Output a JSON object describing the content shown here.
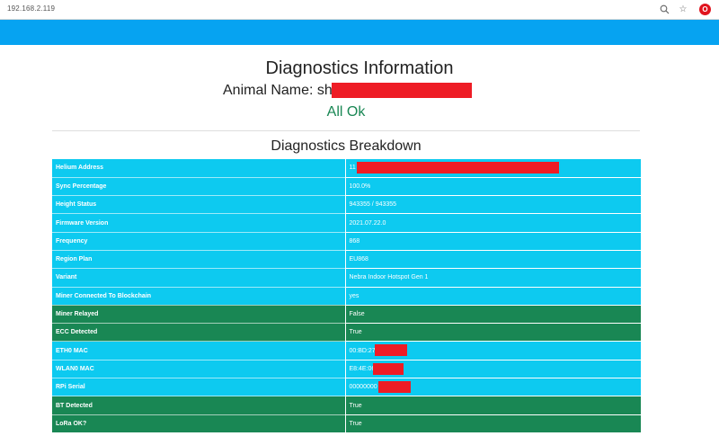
{
  "browser": {
    "url": "192.168.2.119",
    "zoom_icon": "magnifier-icon",
    "bookmark_icon": "star-icon",
    "opera_icon": "opera-logo-icon",
    "opera_glyph": "O"
  },
  "page": {
    "title": "Diagnostics Information",
    "animal_name": "Animal Name: sh",
    "status": "All Ok",
    "breakdown_title": "Diagnostics Breakdown"
  },
  "colors": {
    "header": "#06a3f1",
    "info_row": "#0dcaf0",
    "success_row": "#198754",
    "redaction": "#ee1c25"
  },
  "diagnostics": [
    {
      "key": "Helium Address",
      "value": "11",
      "style": "info",
      "redacted": true
    },
    {
      "key": "Sync Percentage",
      "value": "100.0%",
      "style": "info",
      "redacted": false
    },
    {
      "key": "Height Status",
      "value": "943355 / 943355",
      "style": "info",
      "redacted": false
    },
    {
      "key": "Firmware Version",
      "value": "2021.07.22.0",
      "style": "info",
      "redacted": false
    },
    {
      "key": "Frequency",
      "value": "868",
      "style": "info",
      "redacted": false
    },
    {
      "key": "Region Plan",
      "value": "EU868",
      "style": "info",
      "redacted": false
    },
    {
      "key": "Variant",
      "value": "Nebra Indoor Hotspot Gen 1",
      "style": "info",
      "redacted": false
    },
    {
      "key": "Miner Connected To Blockchain",
      "value": "yes",
      "style": "info",
      "redacted": false
    },
    {
      "key": "Miner Relayed",
      "value": "False",
      "style": "success",
      "redacted": false
    },
    {
      "key": "ECC Detected",
      "value": "True",
      "style": "success",
      "redacted": false
    },
    {
      "key": "ETH0 MAC",
      "value": "00:BD:27",
      "style": "info",
      "redacted": true
    },
    {
      "key": "WLAN0 MAC",
      "value": "E8:4E:06",
      "style": "info",
      "redacted": true
    },
    {
      "key": "RPi Serial",
      "value": "00000000",
      "style": "info",
      "redacted": true
    },
    {
      "key": "BT Detected",
      "value": "True",
      "style": "success",
      "redacted": false
    },
    {
      "key": "LoRa OK?",
      "value": "True",
      "style": "success",
      "redacted": false
    }
  ]
}
